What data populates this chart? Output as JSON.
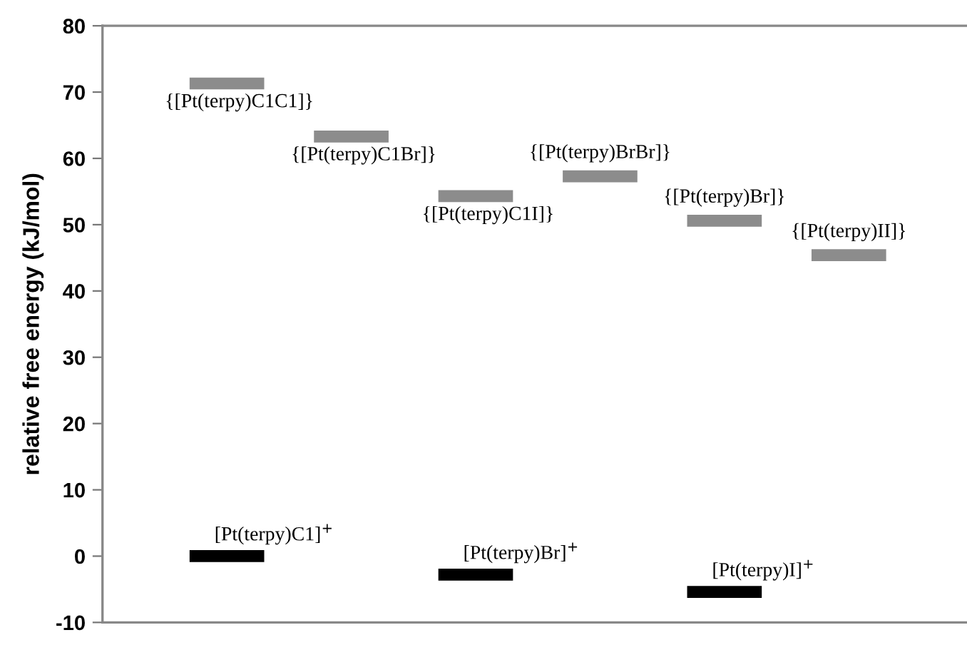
{
  "chart_data": {
    "type": "bar",
    "ylabel": "relative free energy (kJ/mol)",
    "categories": [
      null,
      null,
      null,
      null,
      null,
      null
    ],
    "ylim": [
      -10,
      80
    ],
    "yticks": [
      -10,
      0,
      10,
      20,
      30,
      40,
      50,
      60,
      70,
      80
    ],
    "grid": false,
    "legend": false,
    "tick_labels": "y",
    "series": [
      {
        "color": "#8c8c8c",
        "values": [
          1.8,
          1.8,
          1.8,
          1.8,
          1.8,
          1.8
        ],
        "base": [
          70.4,
          62.4,
          53.4,
          56.4,
          49.7,
          44.5
        ],
        "value_labels": [
          "{[Pt(terpy)C1C1]}",
          "{[Pt(terpy)C1Br]}",
          "{[Pt(terpy)C1I]}",
          "{[Pt(terpy)BrBr]}",
          "{[Pt(terpy)Br]}",
          "{[Pt(terpy)II]}"
        ]
      },
      {
        "color": "#000000",
        "values": [
          1.8,
          null,
          1.8,
          null,
          1.8,
          null
        ],
        "base": [
          -0.9,
          null,
          -3.7,
          null,
          -6.3,
          null
        ],
        "value_labels": [
          "[Pt(terpy)C1]$^{+}$",
          null,
          "[Pt(terpy)Br]$^{+}$",
          null,
          "[Pt(terpy)I]$^{+}$",
          null
        ]
      }
    ]
  }
}
